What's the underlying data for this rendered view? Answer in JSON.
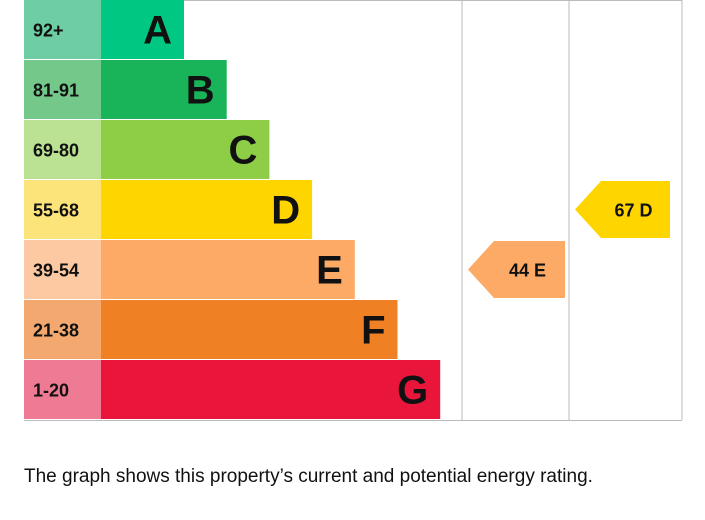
{
  "chart_data": {
    "type": "bar",
    "title": "",
    "bands": [
      {
        "letter": "A",
        "range": "92+",
        "min": 92,
        "color": "#00c781",
        "range_color": "#6ecda2"
      },
      {
        "letter": "B",
        "range": "81-91",
        "min": 81,
        "color": "#19b459",
        "range_color": "#74c889"
      },
      {
        "letter": "C",
        "range": "69-80",
        "min": 69,
        "color": "#8dce46",
        "range_color": "#bbe192"
      },
      {
        "letter": "D",
        "range": "55-68",
        "min": 55,
        "color": "#ffd500",
        "range_color": "#fde47a"
      },
      {
        "letter": "E",
        "range": "39-54",
        "min": 39,
        "color": "#fcaa65",
        "range_color": "#fcc9a3"
      },
      {
        "letter": "F",
        "range": "21-38",
        "min": 21,
        "color": "#ef8023",
        "range_color": "#f2a86e"
      },
      {
        "letter": "G",
        "range": "1-20",
        "min": 1,
        "color": "#e9153b",
        "range_color": "#ef7a93"
      }
    ],
    "ratings": {
      "current": {
        "value": 44,
        "band": "E",
        "label": "44 E",
        "color": "#fcaa65"
      },
      "potential": {
        "value": 67,
        "band": "D",
        "label": "67 D",
        "color": "#ffd500"
      }
    },
    "gridline_color": "#bbbbbb"
  },
  "caption": "The graph shows this property’s current and potential energy rating."
}
